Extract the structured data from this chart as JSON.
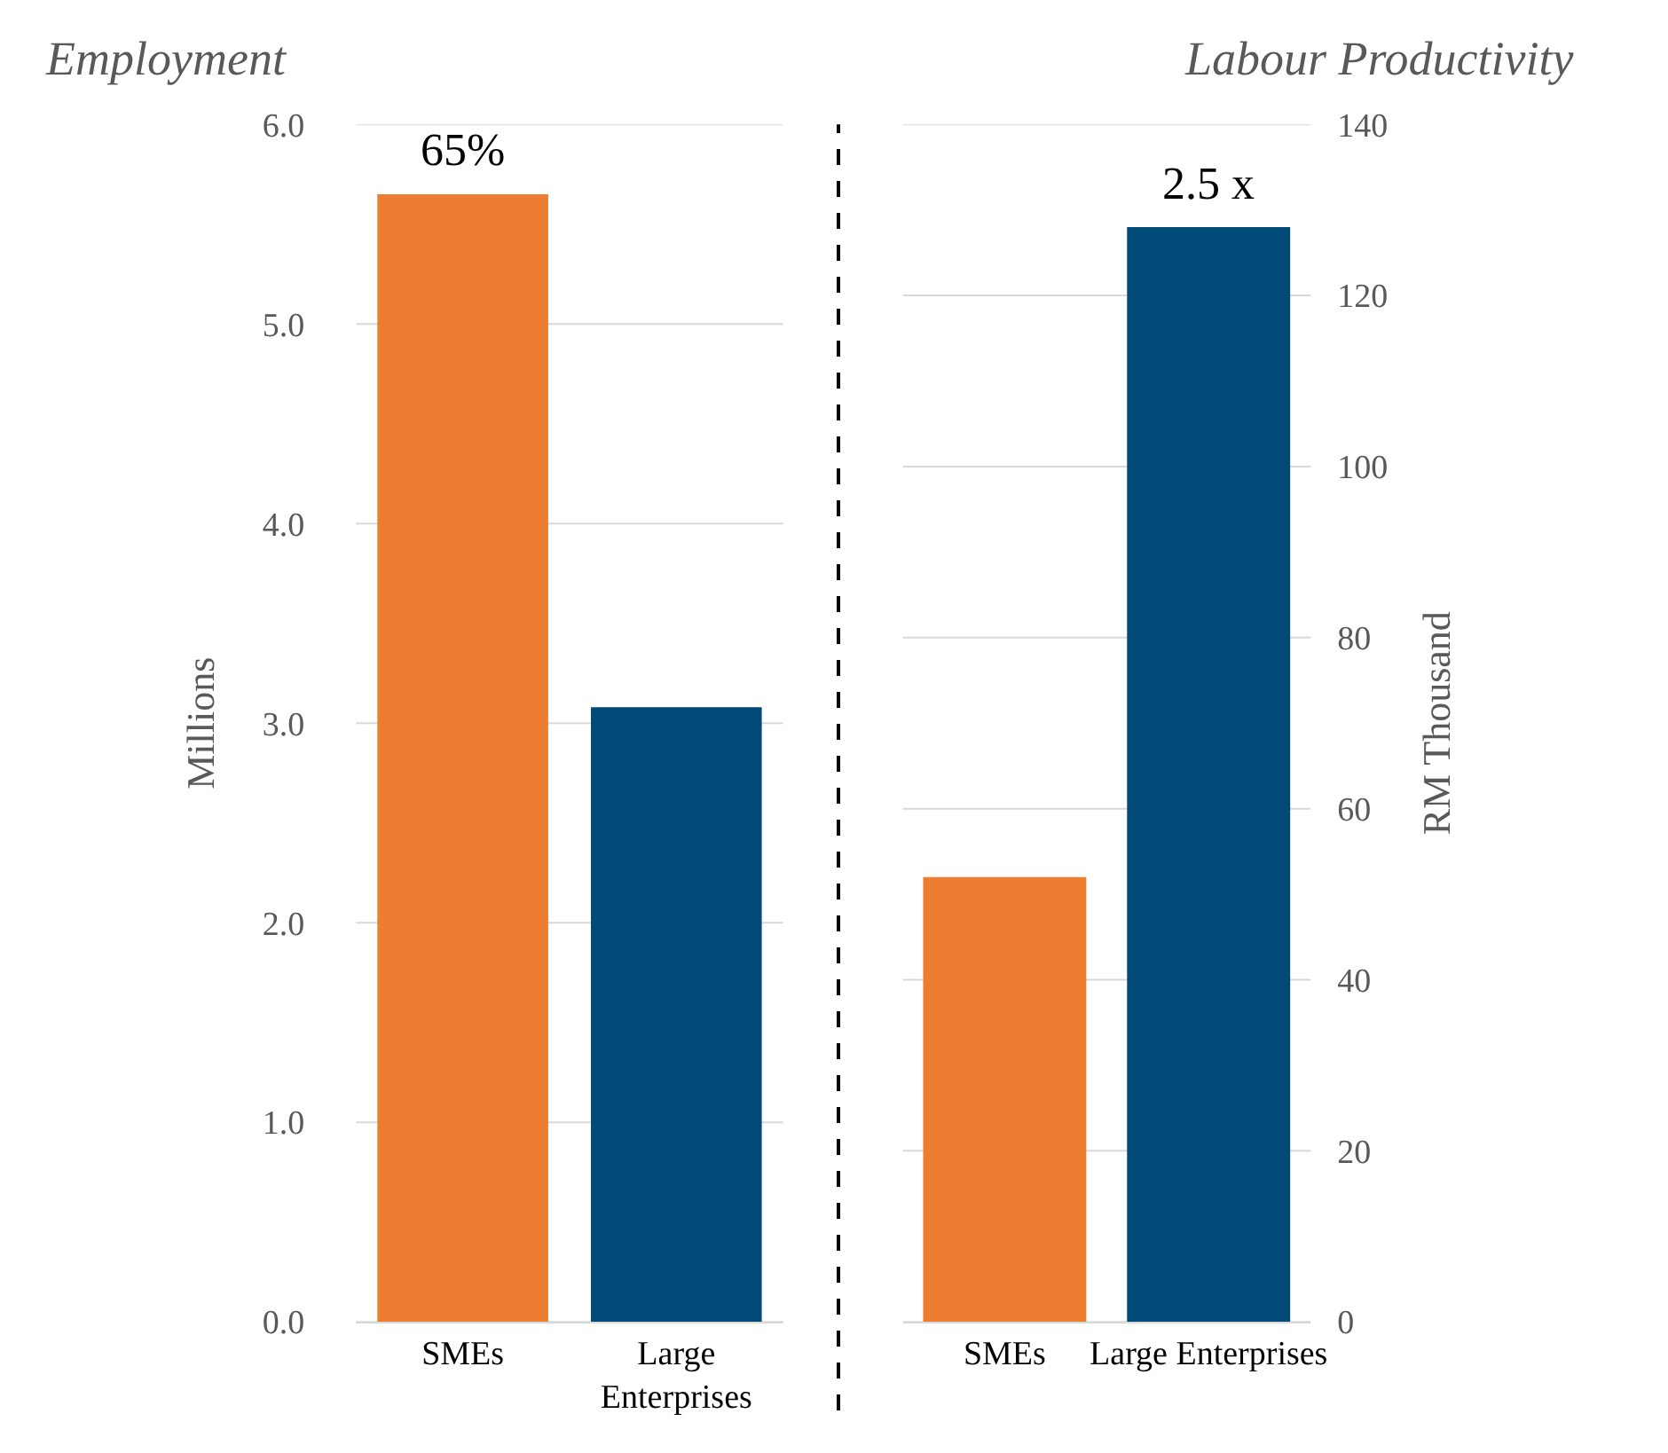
{
  "chart_data": [
    {
      "type": "bar",
      "title": "Employment",
      "ylabel": "Millions",
      "categories": [
        "SMEs",
        "Large Enterprises"
      ],
      "values": [
        5.65,
        3.08
      ],
      "colors": [
        "#ed7d31",
        "#004a78"
      ],
      "ylim": [
        0,
        6.0
      ],
      "yticks": [
        {
          "value": 0,
          "label": "0.0"
        },
        {
          "value": 1,
          "label": "1.0"
        },
        {
          "value": 2,
          "label": "2.0"
        },
        {
          "value": 3,
          "label": "3.0"
        },
        {
          "value": 4,
          "label": "4.0"
        },
        {
          "value": 5,
          "label": "5.0"
        },
        {
          "value": 6,
          "label": "6.0"
        }
      ],
      "grid": "y",
      "annotations": [
        {
          "text": "65%",
          "x": "SMEs",
          "y": 5.65
        }
      ]
    },
    {
      "type": "bar",
      "title": "Labour Productivity",
      "ylabel": "RM Thousand",
      "categories": [
        "SMEs",
        "Large Enterprises"
      ],
      "values": [
        52,
        128
      ],
      "colors": [
        "#ed7d31",
        "#004a78"
      ],
      "ylim": [
        0,
        140
      ],
      "yticks": [
        0,
        20,
        40,
        60,
        80,
        100,
        120,
        140
      ],
      "grid": "y",
      "annotations": [
        {
          "text": "2.5 x",
          "x": "Large Enterprises",
          "y": 128
        }
      ]
    }
  ]
}
